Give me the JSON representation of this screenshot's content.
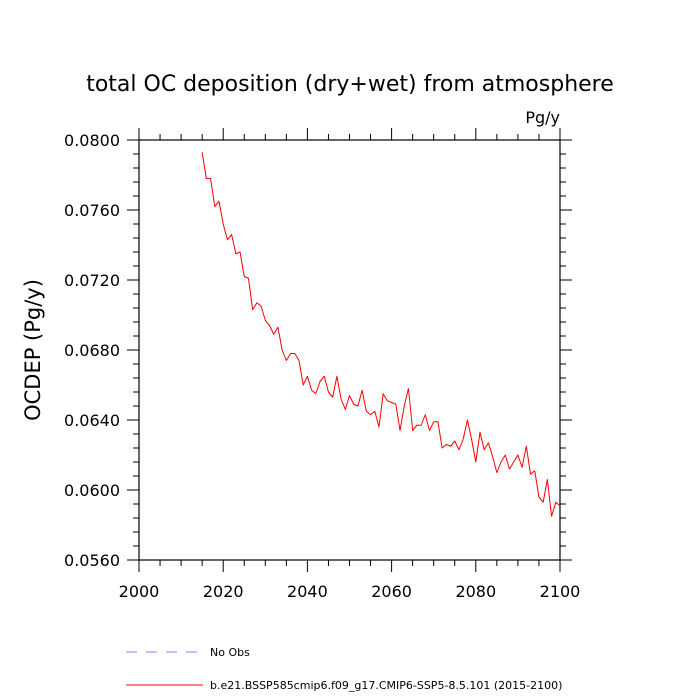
{
  "chart_data": {
    "type": "line",
    "title": "total OC deposition (dry+wet) from atmosphere",
    "units_label": "Pg/y",
    "xlabel": "",
    "ylabel": "OCDEP  (Pg/y)",
    "xlim": [
      2000,
      2100
    ],
    "ylim": [
      0.056,
      0.08
    ],
    "x_ticks": [
      2000,
      2020,
      2040,
      2060,
      2080,
      2100
    ],
    "x_tick_labels": [
      "2000",
      "2020",
      "2040",
      "2060",
      "2080",
      "2100"
    ],
    "y_ticks": [
      0.056,
      0.06,
      0.064,
      0.068,
      0.072,
      0.076,
      0.08
    ],
    "y_tick_labels": [
      "0.0560",
      "0.0600",
      "0.0640",
      "0.0680",
      "0.0720",
      "0.0760",
      "0.0800"
    ],
    "grid": false,
    "legend_position": "bottom",
    "series": [
      {
        "name": "No Obs",
        "color": "#8080ff",
        "dash": "dashed",
        "x": [],
        "y": []
      },
      {
        "name": "b.e21.BSSP585cmip6.f09_g17.CMIP6-SSP5-8.5.101 (2015-2100)",
        "color": "#ff0000",
        "dash": "solid",
        "x": [
          2015,
          2016,
          2017,
          2018,
          2019,
          2020,
          2021,
          2022,
          2023,
          2024,
          2025,
          2026,
          2027,
          2028,
          2029,
          2030,
          2031,
          2032,
          2033,
          2034,
          2035,
          2036,
          2037,
          2038,
          2039,
          2040,
          2041,
          2042,
          2043,
          2044,
          2045,
          2046,
          2047,
          2048,
          2049,
          2050,
          2051,
          2052,
          2053,
          2054,
          2055,
          2056,
          2057,
          2058,
          2059,
          2060,
          2061,
          2062,
          2063,
          2064,
          2065,
          2066,
          2067,
          2068,
          2069,
          2070,
          2071,
          2072,
          2073,
          2074,
          2075,
          2076,
          2077,
          2078,
          2079,
          2080,
          2081,
          2082,
          2083,
          2084,
          2085,
          2086,
          2087,
          2088,
          2089,
          2090,
          2091,
          2092,
          2093,
          2094,
          2095,
          2096,
          2097,
          2098,
          2099,
          2100
        ],
        "y": [
          0.0793,
          0.0778,
          0.0778,
          0.0762,
          0.0765,
          0.0752,
          0.0743,
          0.0746,
          0.0735,
          0.0736,
          0.0722,
          0.0721,
          0.0703,
          0.0707,
          0.0705,
          0.0697,
          0.0694,
          0.0689,
          0.0693,
          0.068,
          0.0674,
          0.0678,
          0.0678,
          0.0674,
          0.066,
          0.0665,
          0.0657,
          0.0655,
          0.0662,
          0.0665,
          0.0656,
          0.0653,
          0.0665,
          0.0652,
          0.0646,
          0.0654,
          0.0649,
          0.0648,
          0.0657,
          0.0645,
          0.0643,
          0.0645,
          0.0636,
          0.0655,
          0.0651,
          0.065,
          0.0649,
          0.0634,
          0.0648,
          0.0658,
          0.0634,
          0.0637,
          0.0637,
          0.0643,
          0.0634,
          0.0639,
          0.0639,
          0.0624,
          0.0626,
          0.0625,
          0.0628,
          0.0623,
          0.0629,
          0.064,
          0.0629,
          0.0616,
          0.0633,
          0.0623,
          0.0627,
          0.0619,
          0.061,
          0.0616,
          0.062,
          0.0612,
          0.0616,
          0.062,
          0.0613,
          0.0625,
          0.0609,
          0.0611,
          0.0596,
          0.0593,
          0.0606,
          0.0585,
          0.0593,
          0.0591
        ]
      }
    ]
  }
}
